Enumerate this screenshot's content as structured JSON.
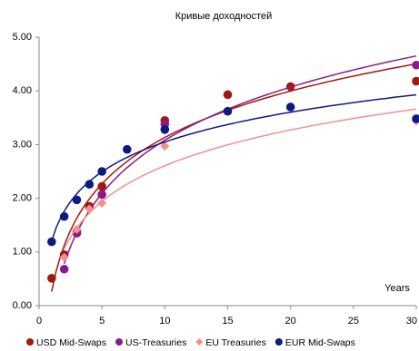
{
  "chart_data": {
    "type": "scatter",
    "title": "Кривые доходностей",
    "x_label": "Years",
    "xlim": [
      0,
      30
    ],
    "xticks": [
      0,
      5,
      10,
      15,
      20,
      25,
      30
    ],
    "ylim": [
      0,
      5
    ],
    "yticks": [
      {
        "value": 0,
        "label": "0.00"
      },
      {
        "value": 1,
        "label": "1.00"
      },
      {
        "value": 2,
        "label": "2.00"
      },
      {
        "value": 3,
        "label": "3.00"
      },
      {
        "value": 4,
        "label": "4.00"
      },
      {
        "value": 5,
        "label": "5.00"
      }
    ],
    "grid": false,
    "trendline": "logarithmic",
    "legend": "bottom",
    "series": [
      {
        "name": "USD Mid-Swaps",
        "color": "#a3180e",
        "marker": "circle",
        "x": [
          1,
          2,
          3,
          4,
          5,
          10,
          15,
          20,
          30
        ],
        "values": [
          0.51,
          0.95,
          1.37,
          1.85,
          2.22,
          3.45,
          3.93,
          4.08,
          4.18
        ]
      },
      {
        "name": "US-Treasuries",
        "color": "#8a1a8c",
        "marker": "circle",
        "x": [
          2,
          3,
          5,
          10,
          30
        ],
        "values": [
          0.68,
          1.35,
          2.07,
          3.38,
          4.48
        ]
      },
      {
        "name": "EU Treasuries",
        "color": "#f4918c",
        "marker": "diamond",
        "x": [
          2,
          3,
          4,
          5,
          10,
          30
        ],
        "values": [
          0.9,
          1.42,
          1.8,
          1.91,
          2.97,
          3.44
        ]
      },
      {
        "name": "EUR Mid-Swaps",
        "color": "#0f1a80",
        "marker": "circle",
        "x": [
          1,
          2,
          3,
          4,
          5,
          7,
          10,
          15,
          20,
          30
        ],
        "values": [
          1.19,
          1.66,
          1.97,
          2.26,
          2.5,
          2.91,
          3.28,
          3.62,
          3.7,
          3.48
        ]
      }
    ]
  }
}
